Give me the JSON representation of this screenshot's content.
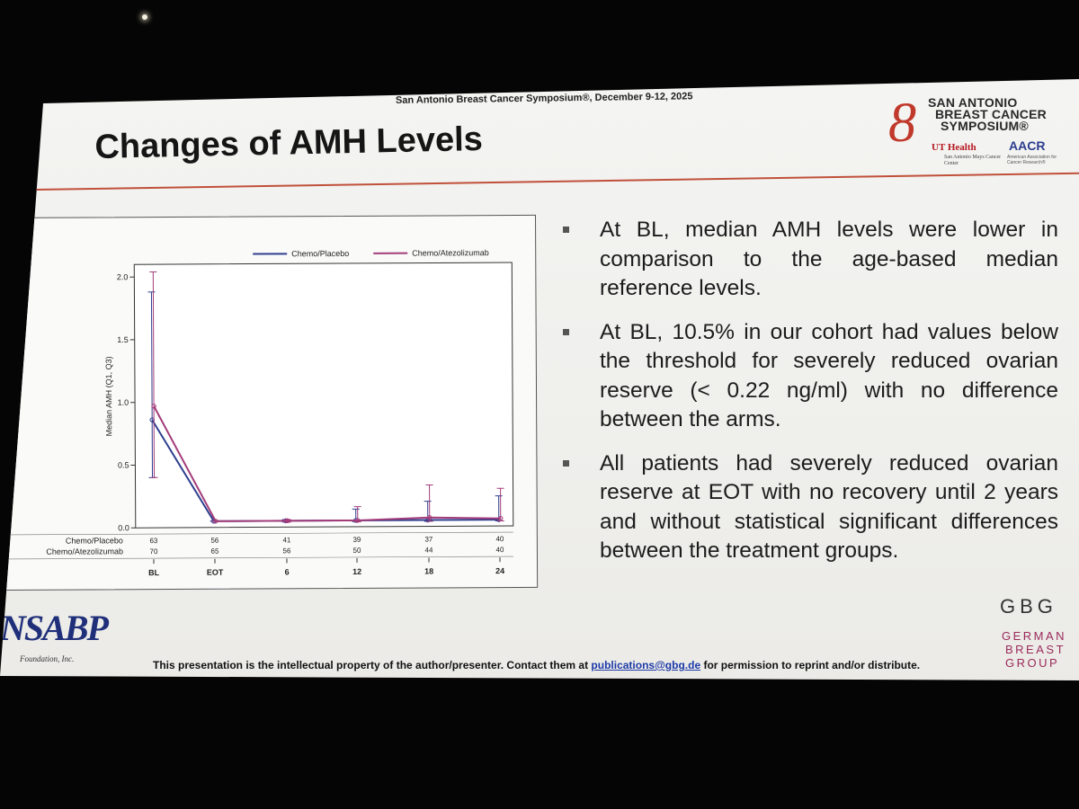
{
  "conference": "San Antonio Breast Cancer Symposium®, December 9-12, 2025",
  "title": "Changes of AMH Levels",
  "sabcs_logo": {
    "lines": [
      "SAN ANTONIO",
      "BREAST CANCER",
      "SYMPOSIUM®"
    ],
    "ut_health": "UT Health",
    "ut_sub": "San Antonio Mays Cancer Center",
    "aacr": "AACR",
    "aacr_sub": "American Association for Cancer Research®",
    "color": "#c0392b"
  },
  "bullets": [
    "At BL, median AMH levels were lower in comparison to the age-based median reference levels.",
    "At BL, 10.5% in our cohort had values below the threshold for severely reduced ovarian reserve (< 0.22 ng/ml) with no difference between the arms.",
    "All patients had severely reduced ovarian reserve at EOT with no recovery until 2 years and without statistical significant differences between the treatment groups."
  ],
  "footer": {
    "text_before": "This presentation is the intellectual property of the author/presenter. Contact them at ",
    "email": "publications@gbg.de",
    "text_after": " for permission to reprint and/or distribute."
  },
  "nsabp": {
    "name": "NSABP",
    "sub": "Foundation, Inc."
  },
  "gbg": {
    "abbr": "GBG",
    "lines": [
      "GERMAN",
      "BREAST",
      "GROUP"
    ]
  },
  "chart_data": {
    "type": "line",
    "ylabel": "Median AMH (Q1, Q3)",
    "xlabel": "",
    "categories": [
      "BL",
      "EOT",
      "6",
      "12",
      "18",
      "24"
    ],
    "yticks": [
      "0.0",
      "0.5",
      "1.0",
      "1.5",
      "2.0"
    ],
    "ylim": [
      0,
      2.1
    ],
    "legend_position": "top",
    "series": [
      {
        "name": "Chemo/Placebo",
        "color": "#2f3f8f",
        "values": [
          0.86,
          0.05,
          0.05,
          0.05,
          0.05,
          0.05
        ],
        "q1": [
          0.4,
          0.05,
          0.04,
          0.04,
          0.04,
          0.04
        ],
        "q3": [
          1.88,
          0.05,
          0.06,
          0.14,
          0.2,
          0.24
        ],
        "n_at_risk": [
          "63",
          "56",
          "41",
          "39",
          "37",
          "40"
        ]
      },
      {
        "name": "Chemo/Atezolizumab",
        "color": "#a33d7a",
        "values": [
          0.97,
          0.05,
          0.05,
          0.05,
          0.07,
          0.06
        ],
        "q1": [
          0.4,
          0.05,
          0.04,
          0.04,
          0.04,
          0.04
        ],
        "q3": [
          2.04,
          0.05,
          0.06,
          0.16,
          0.33,
          0.3
        ],
        "n_at_risk": [
          "70",
          "65",
          "56",
          "50",
          "44",
          "40"
        ]
      }
    ]
  }
}
